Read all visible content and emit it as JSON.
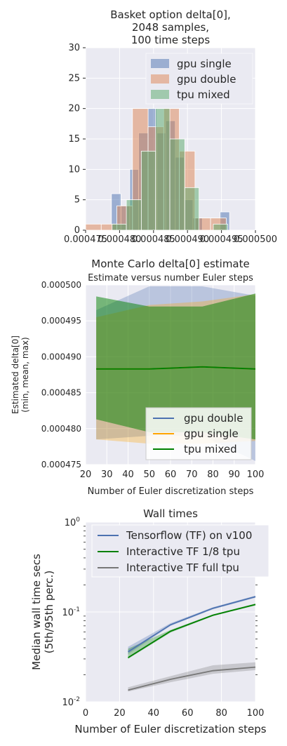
{
  "chart_data": [
    {
      "type": "histogram",
      "title_lines": [
        "Basket option delta[0],",
        "2048 samples,",
        "100 time steps"
      ],
      "xlabel": "Monte Carlo delta[0] estimate",
      "ylabel": "",
      "xlim": [
        0.000475,
        0.0005
      ],
      "ylim": [
        0,
        30
      ],
      "xticks": [
        0.000475,
        0.00048,
        0.000485,
        0.00049,
        0.000495,
        0.0005
      ],
      "xtick_labels": [
        "0.000475",
        "0.000480",
        "0.000485",
        "0.000490",
        "0.000495",
        "0.000500"
      ],
      "yticks": [
        0,
        5,
        10,
        15,
        20,
        25,
        30
      ],
      "ytick_labels": [
        "0",
        "5",
        "10",
        "15",
        "20",
        "25",
        "30"
      ],
      "legend_position": "top-right",
      "grid": true,
      "series": [
        {
          "name": "gpu single",
          "color": "#4c72b0",
          "bins": [
            [
              0.0004788,
              0.0004802,
              6
            ],
            [
              0.0004802,
              0.0004815,
              4
            ],
            [
              0.0004815,
              0.0004828,
              10
            ],
            [
              0.0004828,
              0.0004842,
              16
            ],
            [
              0.0004842,
              0.0004855,
              20
            ],
            [
              0.0004855,
              0.0004868,
              16
            ],
            [
              0.0004868,
              0.0004882,
              18
            ],
            [
              0.0004882,
              0.0004895,
              12
            ],
            [
              0.0004895,
              0.0004908,
              5
            ],
            [
              0.0004908,
              0.0004922,
              2
            ],
            [
              0.0004948,
              0.0004962,
              3
            ]
          ]
        },
        {
          "name": "gpu double",
          "color": "#dd8452",
          "bins": [
            [
              0.000475,
              0.0004773,
              1
            ],
            [
              0.0004773,
              0.0004796,
              1
            ],
            [
              0.0004796,
              0.0004819,
              4
            ],
            [
              0.0004819,
              0.0004842,
              20
            ],
            [
              0.0004842,
              0.0004865,
              17
            ],
            [
              0.0004865,
              0.0004888,
              20
            ],
            [
              0.0004888,
              0.0004911,
              13
            ],
            [
              0.0004911,
              0.0004934,
              2
            ],
            [
              0.0004934,
              0.0004957,
              2
            ]
          ]
        },
        {
          "name": "tpu mixed",
          "color": "#55a868",
          "bins": [
            [
              0.0004789,
              0.000481,
              1
            ],
            [
              0.000481,
              0.0004832,
              5
            ],
            [
              0.0004832,
              0.0004853,
              13
            ],
            [
              0.0004853,
              0.0004874,
              20
            ],
            [
              0.0004874,
              0.0004896,
              15
            ],
            [
              0.0004896,
              0.0004917,
              7
            ],
            [
              0.0004917,
              0.0004938,
              0
            ],
            [
              0.0004938,
              0.0004959,
              1
            ]
          ]
        }
      ]
    },
    {
      "type": "area",
      "title": "Estimate versus number Euler steps",
      "xlabel": "Number of Euler discretization steps",
      "ylabel_lines": [
        "Estimated delta[0]",
        "(min, mean, max)"
      ],
      "xlim": [
        20,
        100
      ],
      "ylim": [
        0.000475,
        0.0005
      ],
      "xticks": [
        20,
        30,
        40,
        50,
        60,
        70,
        80,
        90,
        100
      ],
      "yticks": [
        0.000475,
        0.00048,
        0.000485,
        0.00049,
        0.000495,
        0.0005
      ],
      "ytick_labels": [
        "0.000475",
        "0.000480",
        "0.000485",
        "0.000490",
        "0.000495",
        "0.000500"
      ],
      "legend_position": "bottom-right",
      "grid": true,
      "x": [
        25,
        50,
        75,
        100
      ],
      "series": [
        {
          "name": "gpu double",
          "color": "#4c72b0",
          "min": [
            0.0004785,
            0.000479,
            0.000479,
            0.0004755
          ],
          "mean": [
            0.0004883,
            0.0004883,
            0.0004886,
            0.0004883
          ],
          "max": [
            0.0004965,
            0.0004998,
            0.0004998,
            0.0004985
          ]
        },
        {
          "name": "gpu single",
          "color": "#ffa500",
          "min": [
            0.0004785,
            0.0004779,
            0.0004779,
            0.0004783
          ],
          "mean": [
            0.0004883,
            0.0004883,
            0.0004886,
            0.0004883
          ],
          "max": [
            0.0004955,
            0.0004972,
            0.0004977,
            0.0004987
          ]
        },
        {
          "name": "tpu mixed",
          "color": "#008000",
          "min": [
            0.0004813,
            0.0004795,
            0.0004795,
            0.0004785
          ],
          "mean": [
            0.0004883,
            0.0004883,
            0.0004886,
            0.0004883
          ],
          "max": [
            0.0004984,
            0.000497,
            0.000497,
            0.0004988
          ]
        }
      ]
    },
    {
      "type": "line",
      "title": "Wall times",
      "xlabel": "Number of Euler discretization steps",
      "ylabel_lines": [
        "Median wall time secs",
        "(5th/95th perc.)"
      ],
      "xlim": [
        0,
        100
      ],
      "ylim": [
        0.01,
        1
      ],
      "yscale": "log",
      "xticks": [
        0,
        20,
        40,
        60,
        80,
        100
      ],
      "yticks": [
        0.01,
        0.1,
        1
      ],
      "legend_position": "top",
      "grid": true,
      "x": [
        25,
        50,
        75,
        100
      ],
      "series": [
        {
          "name": "Tensorflow (TF) on v100",
          "color": "#4c72b0",
          "values": [
            0.036,
            0.072,
            0.11,
            0.148
          ],
          "low": [
            0.034,
            0.07,
            0.107,
            0.144
          ],
          "high": [
            0.041,
            0.075,
            0.113,
            0.152
          ]
        },
        {
          "name": "Interactive TF 1/8 tpu",
          "color": "#008000",
          "values": [
            0.031,
            0.061,
            0.092,
            0.121
          ],
          "low": [
            0.03,
            0.059,
            0.09,
            0.118
          ],
          "high": [
            0.039,
            0.063,
            0.094,
            0.124
          ]
        },
        {
          "name": "Interactive TF full tpu",
          "color": "#777777",
          "values": [
            0.0135,
            0.0178,
            0.0222,
            0.0243
          ],
          "low": [
            0.013,
            0.0165,
            0.0205,
            0.0225
          ],
          "high": [
            0.0145,
            0.0193,
            0.0255,
            0.0275
          ]
        }
      ]
    }
  ]
}
